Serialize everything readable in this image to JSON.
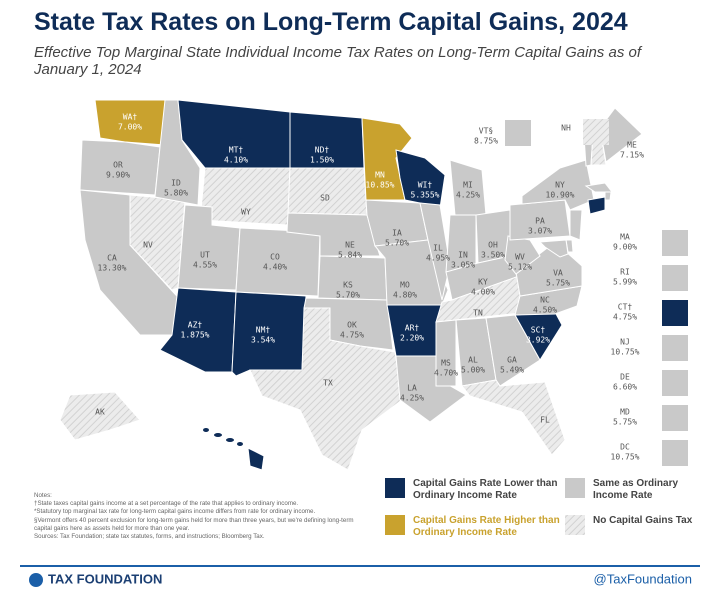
{
  "header": {
    "title": "State Tax Rates on Long-Term Capital Gains, 2024",
    "subtitle": "Effective Top Marginal State Individual Income Tax Rates on Long-Term Capital Gains as of January 1, 2024"
  },
  "legend": [
    {
      "label": "Capital Gains Rate Lower than Ordinary Income Rate",
      "color": "#0e2c57"
    },
    {
      "label": "Capital Gains Rate Higher than Ordinary Income Rate",
      "color": "#c9a22e"
    },
    {
      "label": "Same as Ordinary Income Rate",
      "color": "#c9c9c9"
    },
    {
      "label": "No Capital Gains Tax",
      "color": "hatch"
    }
  ],
  "states": [
    {
      "abbr": "WA†",
      "rate": "7.00%",
      "group": 1
    },
    {
      "abbr": "OR",
      "rate": "9.90%",
      "group": 2
    },
    {
      "abbr": "CA",
      "rate": "13.30%",
      "group": 2
    },
    {
      "abbr": "NV",
      "group": 3
    },
    {
      "abbr": "ID",
      "rate": "5.80%",
      "group": 2
    },
    {
      "abbr": "MT†",
      "rate": "4.10%",
      "group": 0
    },
    {
      "abbr": "WY",
      "group": 3
    },
    {
      "abbr": "UT",
      "rate": "4.55%",
      "group": 2
    },
    {
      "abbr": "CO",
      "rate": "4.40%",
      "group": 2
    },
    {
      "abbr": "AZ†",
      "rate": "1.875%",
      "group": 0
    },
    {
      "abbr": "NM†",
      "rate": "3.54%",
      "group": 0
    },
    {
      "abbr": "ND†",
      "rate": "1.50%",
      "group": 0
    },
    {
      "abbr": "SD",
      "group": 3
    },
    {
      "abbr": "NE",
      "rate": "5.84%",
      "group": 2
    },
    {
      "abbr": "KS",
      "rate": "5.70%",
      "group": 2
    },
    {
      "abbr": "OK",
      "rate": "4.75%",
      "group": 2
    },
    {
      "abbr": "TX",
      "group": 3
    },
    {
      "abbr": "MN",
      "rate": "10.85%",
      "group": 1
    },
    {
      "abbr": "IA",
      "rate": "5.70%",
      "group": 2
    },
    {
      "abbr": "MO",
      "rate": "4.80%",
      "group": 2
    },
    {
      "abbr": "AR†",
      "rate": "2.20%",
      "group": 0
    },
    {
      "abbr": "LA",
      "rate": "4.25%",
      "group": 2
    },
    {
      "abbr": "WI†",
      "rate": "5.355%",
      "group": 0
    },
    {
      "abbr": "IL",
      "rate": "4.95%",
      "group": 2
    },
    {
      "abbr": "MI",
      "rate": "4.25%",
      "group": 2
    },
    {
      "abbr": "IN",
      "rate": "3.05%",
      "group": 2
    },
    {
      "abbr": "OH",
      "rate": "3.50%",
      "group": 2
    },
    {
      "abbr": "KY",
      "rate": "4.00%",
      "group": 2
    },
    {
      "abbr": "TN",
      "group": 3
    },
    {
      "abbr": "MS",
      "rate": "4.70%",
      "group": 2
    },
    {
      "abbr": "AL",
      "rate": "5.00%",
      "group": 2
    },
    {
      "abbr": "GA",
      "rate": "5.49%",
      "group": 2
    },
    {
      "abbr": "FL",
      "group": 3
    },
    {
      "abbr": "SC†",
      "rate": "3.92%",
      "group": 0
    },
    {
      "abbr": "NC",
      "rate": "4.50%",
      "group": 2
    },
    {
      "abbr": "VA",
      "rate": "5.75%",
      "group": 2
    },
    {
      "abbr": "WV",
      "rate": "5.12%",
      "group": 2
    },
    {
      "abbr": "PA",
      "rate": "3.07%",
      "group": 2
    },
    {
      "abbr": "NY",
      "rate": "10.90%",
      "group": 2
    },
    {
      "abbr": "VT§",
      "rate": "8.75%",
      "group": 2
    },
    {
      "abbr": "NH",
      "group": 3
    },
    {
      "abbr": "ME",
      "rate": "7.15%",
      "group": 2
    },
    {
      "abbr": "AK",
      "group": 3
    },
    {
      "abbr": "HI†",
      "rate": "7.25%",
      "group": 0
    },
    {
      "abbr": "MA",
      "rate": "9.00%",
      "group": 2
    },
    {
      "abbr": "RI",
      "rate": "5.99%",
      "group": 2
    },
    {
      "abbr": "CT†",
      "rate": "4.75%",
      "group": 0
    },
    {
      "abbr": "NJ",
      "rate": "10.75%",
      "group": 2
    },
    {
      "abbr": "DE",
      "rate": "6.60%",
      "group": 2
    },
    {
      "abbr": "MD",
      "rate": "5.75%",
      "group": 2
    },
    {
      "abbr": "DC",
      "rate": "10.75%",
      "group": 2
    }
  ],
  "notes": [
    "Notes:",
    "†State taxes capital gains income at a set percentage of the rate that applies to ordinary income.",
    "*Statutory top marginal tax rate for long-term capital gains income differs from rate for ordinary income.",
    "§Vermont offers 40 percent exclusion for long-term gains held for more than three years, but we're defining long-term capital gains here as assets held for more than one year.",
    "Sources: Tax Foundation; state tax statutes, forms, and instructions; Bloomberg Tax."
  ],
  "footer": {
    "brand": "TAX FOUNDATION",
    "handle": "@TaxFoundation"
  }
}
